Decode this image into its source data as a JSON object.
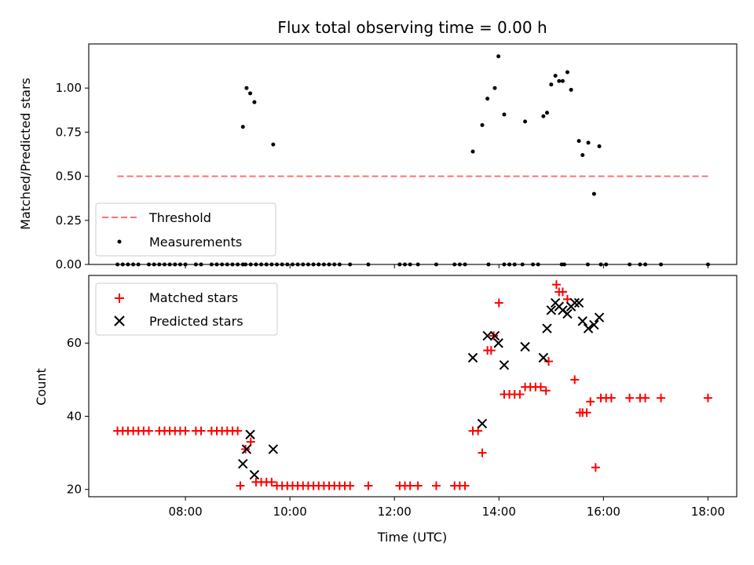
{
  "figure": {
    "title": "Flux total observing time = 0.00 h",
    "xlabel": "Time (UTC)"
  },
  "colors": {
    "threshold": "#ff7070",
    "measurements": "#000000",
    "matched": "#ff0000",
    "predicted": "#000000"
  },
  "chart_data": [
    {
      "type": "scatter",
      "panel": "top",
      "ylabel": "Matched/Predicted stars",
      "xlim": [
        6.15,
        18.55
      ],
      "ylim": [
        0,
        1.25
      ],
      "yticks": [
        0.0,
        0.25,
        0.5,
        0.75,
        1.0
      ],
      "ytick_labels": [
        "0.00",
        "0.25",
        "0.50",
        "0.75",
        "1.00"
      ],
      "legend_position": "lower-left",
      "threshold": {
        "name": "Threshold",
        "value": 0.5,
        "x": [
          6.7,
          18.0
        ]
      },
      "series": [
        {
          "name": "Measurements",
          "x": [
            6.7,
            6.8,
            6.9,
            7.0,
            7.1,
            7.3,
            7.4,
            7.5,
            7.6,
            7.7,
            7.8,
            7.9,
            8.0,
            8.2,
            8.3,
            8.5,
            8.6,
            8.7,
            8.8,
            8.9,
            9.0,
            9.1,
            9.15,
            9.25,
            9.35,
            9.45,
            9.55,
            9.65,
            9.75,
            9.85,
            9.95,
            10.05,
            10.15,
            10.25,
            10.35,
            10.45,
            10.55,
            10.65,
            10.75,
            10.85,
            10.95,
            11.15,
            11.5,
            12.1,
            12.2,
            12.3,
            12.45,
            12.8,
            13.15,
            13.25,
            13.35,
            13.8,
            14.1,
            14.2,
            14.3,
            14.45,
            14.65,
            14.75,
            15.2,
            15.25,
            15.7,
            15.95,
            16.05,
            16.5,
            16.7,
            16.8,
            17.1,
            18.0,
            9.1,
            9.17,
            9.24,
            9.32,
            9.68,
            13.5,
            13.68,
            13.78,
            13.92,
            13.99,
            14.1,
            14.5,
            14.85,
            14.92,
            15.0,
            15.08,
            15.15,
            15.22,
            15.31,
            15.38,
            15.53,
            15.6,
            15.71,
            15.82,
            15.92
          ],
          "y": [
            0,
            0,
            0,
            0,
            0,
            0,
            0,
            0,
            0,
            0,
            0,
            0,
            0,
            0,
            0,
            0,
            0,
            0,
            0,
            0,
            0,
            0,
            0,
            0,
            0,
            0,
            0,
            0,
            0,
            0,
            0,
            0,
            0,
            0,
            0,
            0,
            0,
            0,
            0,
            0,
            0,
            0,
            0,
            0,
            0,
            0,
            0,
            0,
            0,
            0,
            0,
            0,
            0,
            0,
            0,
            0,
            0,
            0,
            0,
            0,
            0,
            0,
            0,
            0,
            0,
            0,
            0,
            0,
            0.78,
            1.0,
            0.97,
            0.92,
            0.68,
            0.64,
            0.79,
            0.94,
            1.0,
            1.18,
            0.85,
            0.81,
            0.84,
            0.86,
            1.02,
            1.07,
            1.04,
            1.04,
            1.09,
            0.99,
            0.7,
            0.62,
            0.69,
            0.4,
            0.67
          ]
        }
      ]
    },
    {
      "type": "scatter",
      "panel": "bottom",
      "ylabel": "Count",
      "xlim": [
        6.15,
        18.55
      ],
      "ylim": [
        18,
        78.5
      ],
      "xticks": [
        8,
        10,
        12,
        14,
        16,
        18
      ],
      "xtick_labels": [
        "08:00",
        "10:00",
        "12:00",
        "14:00",
        "16:00",
        "18:00"
      ],
      "yticks": [
        20,
        40,
        60
      ],
      "ytick_labels": [
        "20",
        "40",
        "60"
      ],
      "legend_position": "upper-left",
      "series": [
        {
          "name": "Matched stars",
          "marker": "plus",
          "x": [
            6.7,
            6.8,
            6.9,
            7.0,
            7.1,
            7.2,
            7.3,
            7.5,
            7.6,
            7.7,
            7.8,
            7.9,
            8.0,
            8.2,
            8.3,
            8.5,
            8.6,
            8.7,
            8.8,
            8.9,
            9.0,
            9.05,
            9.15,
            9.25,
            9.35,
            9.45,
            9.55,
            9.65,
            9.75,
            9.85,
            9.95,
            10.05,
            10.15,
            10.25,
            10.35,
            10.45,
            10.55,
            10.65,
            10.75,
            10.85,
            10.95,
            11.05,
            11.15,
            11.5,
            12.1,
            12.2,
            12.3,
            12.45,
            12.8,
            13.15,
            13.25,
            13.35,
            13.5,
            13.6,
            13.68,
            13.78,
            13.85,
            13.9,
            14.0,
            14.1,
            14.2,
            14.3,
            14.4,
            14.5,
            14.6,
            14.7,
            14.8,
            14.9,
            14.95,
            15.1,
            15.15,
            15.22,
            15.31,
            15.45,
            15.55,
            15.6,
            15.68,
            15.75,
            15.85,
            15.95,
            16.05,
            16.15,
            16.5,
            16.7,
            16.8,
            17.1,
            18.0
          ],
          "y": [
            36,
            36,
            36,
            36,
            36,
            36,
            36,
            36,
            36,
            36,
            36,
            36,
            36,
            36,
            36,
            36,
            36,
            36,
            36,
            36,
            36,
            21,
            31,
            33,
            22,
            22,
            22,
            22,
            21,
            21,
            21,
            21,
            21,
            21,
            21,
            21,
            21,
            21,
            21,
            21,
            21,
            21,
            21,
            21,
            21,
            21,
            21,
            21,
            21,
            21,
            21,
            21,
            36,
            36,
            30,
            58,
            58,
            62,
            71,
            46,
            46,
            46,
            46,
            48,
            48,
            48,
            48,
            47,
            55,
            76,
            74,
            74,
            72,
            50,
            41,
            41,
            41,
            44,
            26,
            45,
            45,
            45,
            45,
            45,
            45,
            45,
            45
          ]
        },
        {
          "name": "Predicted stars",
          "marker": "x",
          "x": [
            9.1,
            9.17,
            9.24,
            9.32,
            9.68,
            13.5,
            13.68,
            13.78,
            13.92,
            13.99,
            14.1,
            14.5,
            14.85,
            14.92,
            15.0,
            15.08,
            15.15,
            15.22,
            15.31,
            15.38,
            15.45,
            15.53,
            15.6,
            15.71,
            15.82,
            15.92
          ],
          "y": [
            27,
            31,
            35,
            24,
            31,
            56,
            38,
            62,
            62,
            60,
            54,
            59,
            56,
            64,
            69,
            71,
            70,
            69,
            68,
            70,
            71,
            71,
            66,
            64,
            65,
            67
          ]
        }
      ]
    }
  ]
}
